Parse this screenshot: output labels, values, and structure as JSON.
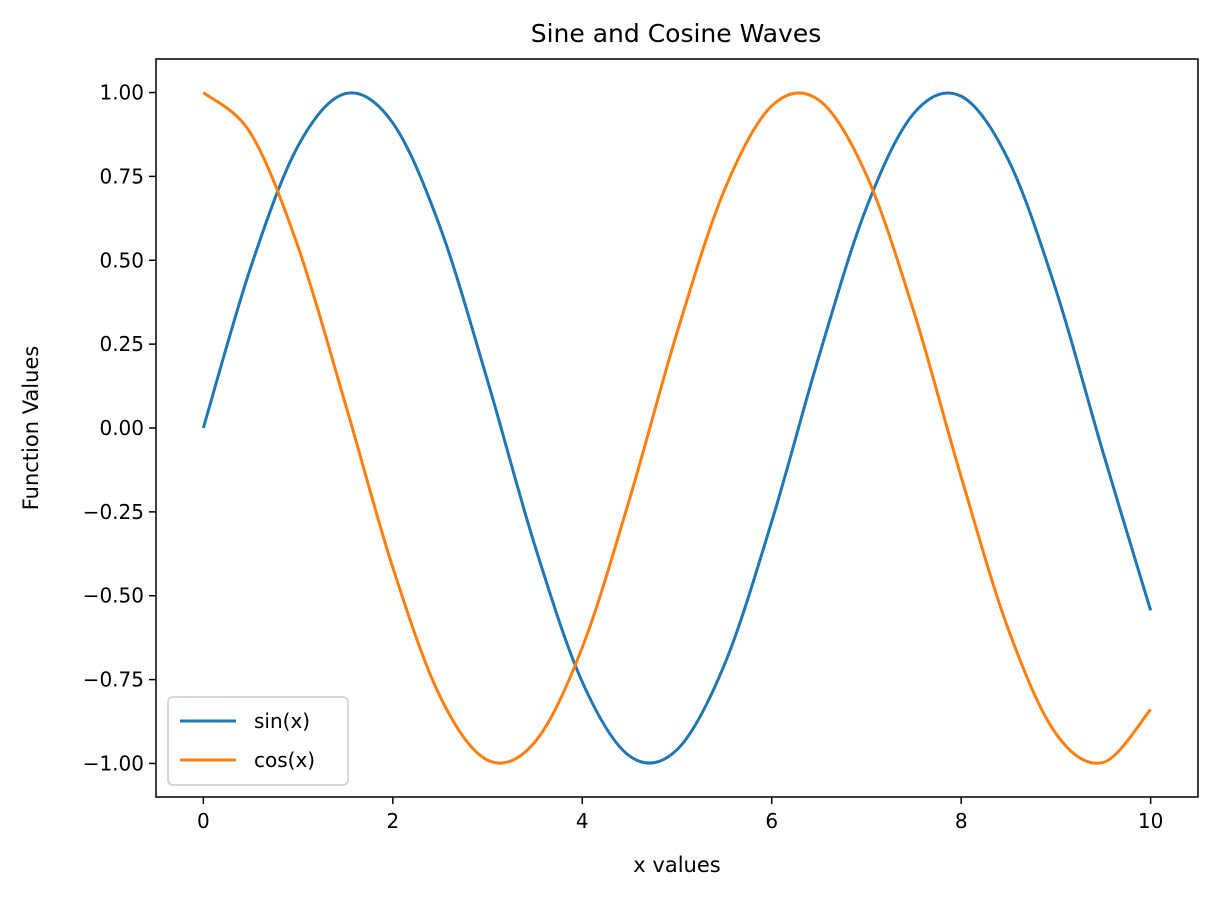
{
  "chart_data": {
    "type": "line",
    "title": "Sine and Cosine Waves",
    "xlabel": "x values",
    "ylabel": "Function Values",
    "xlim": [
      -0.5,
      10.5
    ],
    "ylim": [
      -1.1,
      1.1
    ],
    "x_ticks": [
      0,
      2,
      4,
      6,
      8,
      10
    ],
    "x_tick_labels": [
      "0",
      "2",
      "4",
      "6",
      "8",
      "10"
    ],
    "y_ticks": [
      1.0,
      0.75,
      0.5,
      0.25,
      0.0,
      -0.25,
      -0.5,
      -0.75,
      -1.0
    ],
    "y_tick_labels": [
      "1.00",
      "0.75",
      "0.50",
      "0.25",
      "0.00",
      "−0.25",
      "−0.50",
      "−0.75",
      "−1.00"
    ],
    "grid": false,
    "legend_position": "lower-left",
    "x": [
      0,
      0.5,
      1,
      1.5,
      2,
      2.5,
      3,
      3.5,
      4,
      4.5,
      5,
      5.5,
      6,
      6.5,
      7,
      7.5,
      8,
      8.5,
      9,
      9.5,
      10
    ],
    "series": [
      {
        "name": "sin(x)",
        "color": "#1f77b4",
        "values": [
          0.0,
          0.479,
          0.841,
          0.997,
          0.909,
          0.598,
          0.141,
          -0.351,
          -0.757,
          -0.978,
          -0.959,
          -0.706,
          -0.279,
          0.215,
          0.657,
          0.938,
          0.989,
          0.798,
          0.412,
          -0.075,
          -0.544
        ]
      },
      {
        "name": "cos(x)",
        "color": "#ff7f0e",
        "values": [
          1.0,
          0.878,
          0.54,
          0.071,
          -0.416,
          -0.801,
          -0.99,
          -0.936,
          -0.654,
          -0.211,
          0.284,
          0.709,
          0.96,
          0.977,
          0.754,
          0.347,
          -0.146,
          -0.602,
          -0.911,
          -0.997,
          -0.839
        ]
      }
    ]
  }
}
